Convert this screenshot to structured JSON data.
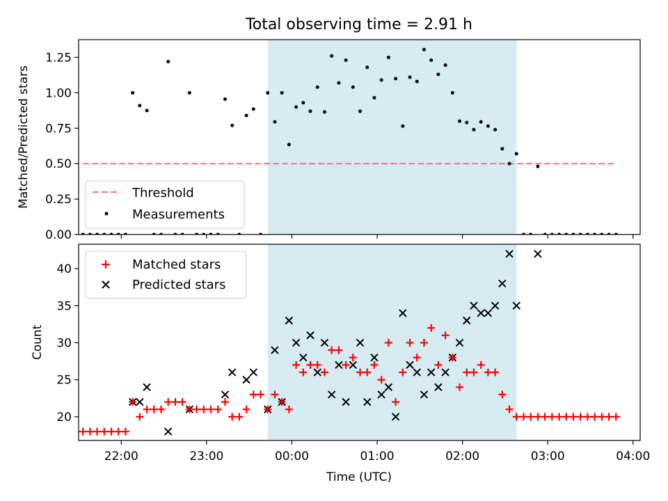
{
  "title": "Total observing time = 2.91 h",
  "chart_data": [
    {
      "type": "scatter",
      "panel": "top",
      "ylabel": "Matched/Predicted stars",
      "ylim": [
        0,
        1.375
      ],
      "yticks": [
        0.0,
        0.25,
        0.5,
        0.75,
        1.0,
        1.25
      ],
      "ytick_labels": [
        "0.00",
        "0.25",
        "0.50",
        "0.75",
        "1.00",
        "1.25"
      ],
      "xlim_utc": [
        "21:30",
        "04:05"
      ],
      "xticks_utc": [
        "22:00",
        "23:00",
        "00:00",
        "01:00",
        "02:00",
        "03:00",
        "04:00"
      ],
      "shaded_interval_utc": [
        "23:43",
        "02:38"
      ],
      "threshold": {
        "label": "Threshold",
        "value": 0.5,
        "x_range_utc": [
          "21:33",
          "03:48"
        ],
        "color": "#f08080"
      },
      "measurements": {
        "label": "Measurements",
        "color": "#000000",
        "points": [
          [
            "21:33",
            0
          ],
          [
            "21:38",
            0
          ],
          [
            "21:43",
            0
          ],
          [
            "21:48",
            0
          ],
          [
            "21:53",
            0
          ],
          [
            "21:58",
            0
          ],
          [
            "22:03",
            0
          ],
          [
            "22:08",
            1.0
          ],
          [
            "22:13",
            0.91
          ],
          [
            "22:18",
            0.875
          ],
          [
            "22:23",
            0
          ],
          [
            "22:28",
            0
          ],
          [
            "22:33",
            1.22
          ],
          [
            "22:38",
            0
          ],
          [
            "22:43",
            0
          ],
          [
            "22:48",
            1.0
          ],
          [
            "22:53",
            0
          ],
          [
            "22:58",
            0
          ],
          [
            "23:03",
            0
          ],
          [
            "23:08",
            0
          ],
          [
            "23:13",
            0.955
          ],
          [
            "23:18",
            0.77
          ],
          [
            "23:23",
            0
          ],
          [
            "23:28",
            0.84
          ],
          [
            "23:33",
            0.885
          ],
          [
            "23:38",
            0
          ],
          [
            "23:43",
            1.0
          ],
          [
            "23:48",
            0.795
          ],
          [
            "23:53",
            1.0
          ],
          [
            "23:58",
            0.635
          ],
          [
            "00:03",
            0.9
          ],
          [
            "00:08",
            0.93
          ],
          [
            "00:13",
            0.87
          ],
          [
            "00:18",
            1.04
          ],
          [
            "00:23",
            0.865
          ],
          [
            "00:28",
            1.26
          ],
          [
            "00:33",
            1.07
          ],
          [
            "00:38",
            1.23
          ],
          [
            "00:43",
            1.04
          ],
          [
            "00:48",
            0.87
          ],
          [
            "00:53",
            1.18
          ],
          [
            "00:58",
            0.965
          ],
          [
            "01:03",
            1.09
          ],
          [
            "01:08",
            1.25
          ],
          [
            "01:13",
            1.1
          ],
          [
            "01:18",
            0.765
          ],
          [
            "01:23",
            1.11
          ],
          [
            "01:28",
            1.08
          ],
          [
            "01:33",
            1.305
          ],
          [
            "01:38",
            1.23
          ],
          [
            "01:43",
            1.13
          ],
          [
            "01:48",
            1.195
          ],
          [
            "01:53",
            1.0
          ],
          [
            "01:58",
            0.8
          ],
          [
            "02:03",
            0.79
          ],
          [
            "02:08",
            0.74
          ],
          [
            "02:13",
            0.795
          ],
          [
            "02:18",
            0.765
          ],
          [
            "02:23",
            0.74
          ],
          [
            "02:28",
            0.605
          ],
          [
            "02:33",
            0.5
          ],
          [
            "02:38",
            0.57
          ],
          [
            "02:43",
            0
          ],
          [
            "02:48",
            0
          ],
          [
            "02:53",
            0.48
          ],
          [
            "02:58",
            0
          ],
          [
            "03:03",
            0
          ],
          [
            "03:08",
            0
          ],
          [
            "03:13",
            0
          ],
          [
            "03:18",
            0
          ],
          [
            "03:23",
            0
          ],
          [
            "03:28",
            0
          ],
          [
            "03:33",
            0
          ],
          [
            "03:38",
            0
          ],
          [
            "03:43",
            0
          ],
          [
            "03:48",
            0
          ]
        ]
      },
      "legend": {
        "placement": "lower-left"
      }
    },
    {
      "type": "scatter",
      "panel": "bottom",
      "xlabel": "Time (UTC)",
      "ylabel": "Count",
      "ylim": [
        16.8,
        43.3
      ],
      "yticks": [
        20,
        25,
        30,
        35,
        40
      ],
      "ytick_labels": [
        "20",
        "25",
        "30",
        "35",
        "40"
      ],
      "xlim_utc": [
        "21:30",
        "04:05"
      ],
      "xticks_utc": [
        "22:00",
        "23:00",
        "00:00",
        "01:00",
        "02:00",
        "03:00",
        "04:00"
      ],
      "xtick_labels": [
        "22:00",
        "23:00",
        "00:00",
        "01:00",
        "02:00",
        "03:00",
        "04:00"
      ],
      "shaded_interval_utc": [
        "23:43",
        "02:38"
      ],
      "series": [
        {
          "name": "Matched stars",
          "marker": "plus",
          "color": "#ff0000",
          "points": [
            [
              "21:33",
              18
            ],
            [
              "21:38",
              18
            ],
            [
              "21:43",
              18
            ],
            [
              "21:48",
              18
            ],
            [
              "21:53",
              18
            ],
            [
              "21:58",
              18
            ],
            [
              "22:03",
              18
            ],
            [
              "22:08",
              22
            ],
            [
              "22:13",
              20
            ],
            [
              "22:18",
              21
            ],
            [
              "22:23",
              21
            ],
            [
              "22:28",
              21
            ],
            [
              "22:33",
              22
            ],
            [
              "22:38",
              22
            ],
            [
              "22:43",
              22
            ],
            [
              "22:48",
              21
            ],
            [
              "22:53",
              21
            ],
            [
              "22:58",
              21
            ],
            [
              "23:03",
              21
            ],
            [
              "23:08",
              21
            ],
            [
              "23:13",
              22
            ],
            [
              "23:18",
              20
            ],
            [
              "23:23",
              20
            ],
            [
              "23:28",
              21
            ],
            [
              "23:33",
              23
            ],
            [
              "23:38",
              23
            ],
            [
              "23:43",
              21
            ],
            [
              "23:48",
              23
            ],
            [
              "23:53",
              22
            ],
            [
              "23:58",
              21
            ],
            [
              "00:03",
              27
            ],
            [
              "00:08",
              26
            ],
            [
              "00:13",
              27
            ],
            [
              "00:18",
              27
            ],
            [
              "00:23",
              26
            ],
            [
              "00:28",
              29
            ],
            [
              "00:33",
              29
            ],
            [
              "00:38",
              27
            ],
            [
              "00:43",
              28
            ],
            [
              "00:48",
              26
            ],
            [
              "00:53",
              26
            ],
            [
              "00:58",
              27
            ],
            [
              "01:03",
              25
            ],
            [
              "01:08",
              30
            ],
            [
              "01:13",
              22
            ],
            [
              "01:18",
              26
            ],
            [
              "01:23",
              30
            ],
            [
              "01:28",
              28
            ],
            [
              "01:33",
              30
            ],
            [
              "01:38",
              32
            ],
            [
              "01:43",
              27
            ],
            [
              "01:48",
              31
            ],
            [
              "01:53",
              28
            ],
            [
              "01:58",
              24
            ],
            [
              "02:03",
              26
            ],
            [
              "02:08",
              26
            ],
            [
              "02:13",
              27
            ],
            [
              "02:18",
              26
            ],
            [
              "02:23",
              26
            ],
            [
              "02:28",
              23
            ],
            [
              "02:33",
              21
            ],
            [
              "02:38",
              20
            ],
            [
              "02:43",
              20
            ],
            [
              "02:48",
              20
            ],
            [
              "02:53",
              20
            ],
            [
              "02:58",
              20
            ],
            [
              "03:03",
              20
            ],
            [
              "03:08",
              20
            ],
            [
              "03:13",
              20
            ],
            [
              "03:18",
              20
            ],
            [
              "03:23",
              20
            ],
            [
              "03:28",
              20
            ],
            [
              "03:33",
              20
            ],
            [
              "03:38",
              20
            ],
            [
              "03:43",
              20
            ],
            [
              "03:48",
              20
            ]
          ]
        },
        {
          "name": "Predicted stars",
          "marker": "x",
          "color": "#000000",
          "points": [
            [
              "22:08",
              22
            ],
            [
              "22:13",
              22
            ],
            [
              "22:18",
              24
            ],
            [
              "22:33",
              18
            ],
            [
              "22:48",
              21
            ],
            [
              "23:13",
              23
            ],
            [
              "23:18",
              26
            ],
            [
              "23:28",
              25
            ],
            [
              "23:33",
              26
            ],
            [
              "23:43",
              21
            ],
            [
              "23:48",
              29
            ],
            [
              "23:53",
              22
            ],
            [
              "23:58",
              33
            ],
            [
              "00:03",
              30
            ],
            [
              "00:08",
              28
            ],
            [
              "00:13",
              31
            ],
            [
              "00:18",
              26
            ],
            [
              "00:23",
              30
            ],
            [
              "00:28",
              23
            ],
            [
              "00:33",
              27
            ],
            [
              "00:38",
              22
            ],
            [
              "00:43",
              27
            ],
            [
              "00:48",
              30
            ],
            [
              "00:53",
              22
            ],
            [
              "00:58",
              28
            ],
            [
              "01:03",
              23
            ],
            [
              "01:08",
              24
            ],
            [
              "01:13",
              20
            ],
            [
              "01:18",
              34
            ],
            [
              "01:23",
              27
            ],
            [
              "01:28",
              26
            ],
            [
              "01:33",
              23
            ],
            [
              "01:38",
              26
            ],
            [
              "01:43",
              24
            ],
            [
              "01:48",
              26
            ],
            [
              "01:53",
              28
            ],
            [
              "01:58",
              30
            ],
            [
              "02:03",
              33
            ],
            [
              "02:08",
              35
            ],
            [
              "02:13",
              34
            ],
            [
              "02:18",
              34
            ],
            [
              "02:23",
              35
            ],
            [
              "02:28",
              38
            ],
            [
              "02:33",
              42
            ],
            [
              "02:38",
              35
            ],
            [
              "02:53",
              42
            ]
          ]
        }
      ],
      "legend": {
        "placement": "top-left"
      }
    }
  ]
}
